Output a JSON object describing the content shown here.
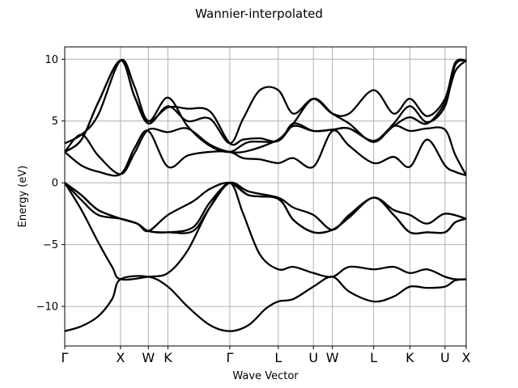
{
  "chart_data": {
    "type": "line",
    "title": "Wannier-interpolated",
    "xlabel": "Wave Vector",
    "ylabel": "Energy (eV)",
    "xlim": [
      0,
      7.2
    ],
    "ylim": [
      -13.2,
      11.0
    ],
    "grid": true,
    "kpoints": [
      {
        "label": "Γ",
        "x": 0.0
      },
      {
        "label": "X",
        "x": 1.0
      },
      {
        "label": "W",
        "x": 1.5
      },
      {
        "label": "K",
        "x": 1.85
      },
      {
        "label": "Γ",
        "x": 2.96
      },
      {
        "label": "L",
        "x": 3.83
      },
      {
        "label": "U",
        "x": 4.46
      },
      {
        "label": "W",
        "x": 4.8
      },
      {
        "label": "L",
        "x": 5.54
      },
      {
        "label": "K",
        "x": 6.19
      },
      {
        "label": "U",
        "x": 6.82
      },
      {
        "label": "X",
        "x": 7.2
      }
    ],
    "yticks": [
      {
        "label": "10",
        "value": 10
      },
      {
        "label": "5",
        "value": 5
      },
      {
        "label": "0",
        "value": 0
      },
      {
        "label": "−5",
        "value": -5
      },
      {
        "label": "−10",
        "value": -10
      }
    ],
    "series": [
      {
        "values": [
          [
            0,
            -12.0
          ],
          [
            0.3,
            -11.6
          ],
          [
            0.6,
            -10.8
          ],
          [
            0.85,
            -9.4
          ],
          [
            1.0,
            -7.8
          ],
          [
            1.5,
            -7.6
          ],
          [
            1.85,
            -8.4
          ],
          [
            2.2,
            -10.0
          ],
          [
            2.6,
            -11.5
          ],
          [
            2.96,
            -12.0
          ],
          [
            3.3,
            -11.5
          ],
          [
            3.6,
            -10.2
          ],
          [
            3.83,
            -9.6
          ],
          [
            4.1,
            -9.4
          ],
          [
            4.46,
            -8.4
          ],
          [
            4.8,
            -7.6
          ],
          [
            5.1,
            -8.8
          ],
          [
            5.54,
            -9.6
          ],
          [
            5.9,
            -9.2
          ],
          [
            6.19,
            -8.4
          ],
          [
            6.5,
            -8.5
          ],
          [
            6.82,
            -8.4
          ],
          [
            7.0,
            -7.9
          ],
          [
            7.2,
            -7.8
          ]
        ]
      },
      {
        "values": [
          [
            0,
            0
          ],
          [
            0.3,
            -2.2
          ],
          [
            0.6,
            -4.8
          ],
          [
            0.85,
            -6.8
          ],
          [
            1.0,
            -7.8
          ],
          [
            1.5,
            -7.6
          ],
          [
            1.85,
            -7.3
          ],
          [
            2.2,
            -5.5
          ],
          [
            2.6,
            -2.0
          ],
          [
            2.96,
            0
          ],
          [
            3.2,
            -2.5
          ],
          [
            3.5,
            -5.8
          ],
          [
            3.83,
            -7.0
          ],
          [
            4.1,
            -6.8
          ],
          [
            4.46,
            -7.3
          ],
          [
            4.8,
            -7.6
          ],
          [
            5.1,
            -6.8
          ],
          [
            5.54,
            -7.0
          ],
          [
            5.9,
            -6.8
          ],
          [
            6.19,
            -7.3
          ],
          [
            6.5,
            -7.0
          ],
          [
            6.82,
            -7.6
          ],
          [
            7.0,
            -7.8
          ],
          [
            7.2,
            -7.8
          ]
        ]
      },
      {
        "values": [
          [
            0,
            0
          ],
          [
            0.3,
            -1.4
          ],
          [
            0.6,
            -2.6
          ],
          [
            1.0,
            -2.9
          ],
          [
            1.3,
            -3.3
          ],
          [
            1.5,
            -3.9
          ],
          [
            1.85,
            -4.0
          ],
          [
            2.3,
            -3.6
          ],
          [
            2.6,
            -1.6
          ],
          [
            2.96,
            0
          ],
          [
            3.3,
            -0.7
          ],
          [
            3.83,
            -1.2
          ],
          [
            4.1,
            -2.0
          ],
          [
            4.46,
            -2.6
          ],
          [
            4.8,
            -3.8
          ],
          [
            5.1,
            -2.6
          ],
          [
            5.54,
            -1.2
          ],
          [
            5.9,
            -2.2
          ],
          [
            6.19,
            -2.6
          ],
          [
            6.5,
            -3.3
          ],
          [
            6.82,
            -2.5
          ],
          [
            7.2,
            -2.9
          ]
        ]
      },
      {
        "values": [
          [
            0,
            0
          ],
          [
            0.3,
            -1.0
          ],
          [
            0.6,
            -2.2
          ],
          [
            1.0,
            -2.9
          ],
          [
            1.3,
            -3.3
          ],
          [
            1.5,
            -3.9
          ],
          [
            1.85,
            -2.6
          ],
          [
            2.3,
            -1.5
          ],
          [
            2.6,
            -0.5
          ],
          [
            2.96,
            0
          ],
          [
            3.3,
            -1.0
          ],
          [
            3.83,
            -1.3
          ],
          [
            4.1,
            -3.0
          ],
          [
            4.46,
            -4.0
          ],
          [
            4.8,
            -3.8
          ],
          [
            5.1,
            -2.8
          ],
          [
            5.54,
            -1.2
          ],
          [
            5.9,
            -2.6
          ],
          [
            6.19,
            -4.0
          ],
          [
            6.5,
            -4.0
          ],
          [
            6.82,
            -4.0
          ],
          [
            7.0,
            -3.2
          ],
          [
            7.2,
            -2.9
          ]
        ]
      },
      {
        "values": [
          [
            0,
            0
          ],
          [
            0.3,
            -1.0
          ],
          [
            0.6,
            -2.2
          ],
          [
            1.0,
            -2.9
          ],
          [
            1.3,
            -3.3
          ],
          [
            1.5,
            -3.9
          ],
          [
            1.85,
            -4.0
          ],
          [
            2.3,
            -3.9
          ],
          [
            2.6,
            -2.0
          ],
          [
            2.96,
            0
          ],
          [
            3.3,
            -1.0
          ],
          [
            3.83,
            -1.3
          ],
          [
            4.1,
            -3.0
          ],
          [
            4.46,
            -4.0
          ],
          [
            4.8,
            -3.8
          ],
          [
            5.1,
            -2.8
          ],
          [
            5.54,
            -1.2
          ],
          [
            5.9,
            -2.6
          ],
          [
            6.19,
            -4.0
          ],
          [
            6.5,
            -4.0
          ],
          [
            6.82,
            -4.0
          ],
          [
            7.0,
            -3.2
          ],
          [
            7.2,
            -2.9
          ]
        ]
      },
      {
        "values": [
          [
            0,
            2.5
          ],
          [
            0.3,
            1.4
          ],
          [
            0.6,
            0.9
          ],
          [
            1.0,
            0.7
          ],
          [
            1.25,
            2.8
          ],
          [
            1.5,
            4.2
          ],
          [
            1.85,
            1.3
          ],
          [
            2.2,
            2.2
          ],
          [
            2.6,
            2.5
          ],
          [
            2.96,
            2.5
          ],
          [
            3.2,
            2.0
          ],
          [
            3.5,
            1.9
          ],
          [
            3.83,
            1.6
          ],
          [
            4.1,
            2.0
          ],
          [
            4.46,
            1.3
          ],
          [
            4.8,
            4.2
          ],
          [
            5.1,
            3.0
          ],
          [
            5.54,
            1.6
          ],
          [
            5.9,
            2.1
          ],
          [
            6.19,
            1.3
          ],
          [
            6.5,
            3.5
          ],
          [
            6.82,
            1.4
          ],
          [
            7.0,
            0.9
          ],
          [
            7.2,
            0.6
          ]
        ]
      },
      {
        "values": [
          [
            0,
            2.5
          ],
          [
            0.3,
            3.9
          ],
          [
            0.6,
            2.2
          ],
          [
            1.0,
            0.7
          ],
          [
            1.25,
            2.4
          ],
          [
            1.5,
            4.3
          ],
          [
            1.85,
            4.1
          ],
          [
            2.2,
            4.4
          ],
          [
            2.6,
            3.1
          ],
          [
            2.96,
            2.5
          ],
          [
            3.3,
            2.6
          ],
          [
            3.83,
            3.5
          ],
          [
            4.1,
            4.6
          ],
          [
            4.46,
            4.2
          ],
          [
            4.8,
            4.3
          ],
          [
            5.1,
            4.4
          ],
          [
            5.54,
            3.4
          ],
          [
            5.9,
            4.6
          ],
          [
            6.19,
            4.2
          ],
          [
            6.5,
            4.4
          ],
          [
            6.82,
            4.3
          ],
          [
            7.0,
            2.3
          ],
          [
            7.2,
            0.6
          ]
        ]
      },
      {
        "values": [
          [
            0,
            3.2
          ],
          [
            0.3,
            3.9
          ],
          [
            0.6,
            5.5
          ],
          [
            1.0,
            9.9
          ],
          [
            1.25,
            7.8
          ],
          [
            1.5,
            5.0
          ],
          [
            1.85,
            6.9
          ],
          [
            2.2,
            4.6
          ],
          [
            2.6,
            3.0
          ],
          [
            2.96,
            2.5
          ],
          [
            3.3,
            3.3
          ],
          [
            3.83,
            3.4
          ],
          [
            4.1,
            4.8
          ],
          [
            4.46,
            4.2
          ],
          [
            4.8,
            4.3
          ],
          [
            5.1,
            4.4
          ],
          [
            5.54,
            3.4
          ],
          [
            5.9,
            4.6
          ],
          [
            6.19,
            5.3
          ],
          [
            6.5,
            4.8
          ],
          [
            6.82,
            6.5
          ],
          [
            7.0,
            9.0
          ],
          [
            7.2,
            9.9
          ]
        ]
      },
      {
        "values": [
          [
            0,
            2.5
          ],
          [
            0.3,
            3.5
          ],
          [
            0.6,
            6.5
          ],
          [
            1.0,
            9.9
          ],
          [
            1.25,
            7.0
          ],
          [
            1.5,
            4.8
          ],
          [
            1.85,
            6.2
          ],
          [
            2.2,
            5.0
          ],
          [
            2.6,
            5.2
          ],
          [
            2.96,
            3.2
          ],
          [
            3.2,
            5.2
          ],
          [
            3.5,
            7.5
          ],
          [
            3.83,
            7.5
          ],
          [
            4.1,
            5.6
          ],
          [
            4.46,
            6.8
          ],
          [
            4.8,
            5.6
          ],
          [
            5.1,
            5.6
          ],
          [
            5.54,
            7.5
          ],
          [
            5.9,
            5.6
          ],
          [
            6.19,
            6.8
          ],
          [
            6.5,
            5.4
          ],
          [
            6.82,
            6.8
          ],
          [
            7.0,
            9.7
          ],
          [
            7.2,
            9.9
          ]
        ]
      },
      {
        "values": [
          [
            0,
            2.5
          ],
          [
            0.3,
            3.5
          ],
          [
            0.6,
            6.5
          ],
          [
            1.0,
            9.9
          ],
          [
            1.25,
            7.0
          ],
          [
            1.5,
            5.0
          ],
          [
            1.85,
            6.1
          ],
          [
            2.2,
            6.0
          ],
          [
            2.6,
            5.8
          ],
          [
            2.96,
            3.2
          ],
          [
            3.2,
            3.5
          ],
          [
            3.5,
            3.6
          ],
          [
            3.83,
            3.4
          ],
          [
            4.1,
            4.8
          ],
          [
            4.46,
            6.8
          ],
          [
            4.8,
            5.6
          ],
          [
            5.1,
            4.8
          ],
          [
            5.54,
            3.3
          ],
          [
            5.9,
            4.8
          ],
          [
            6.19,
            6.2
          ],
          [
            6.5,
            4.9
          ],
          [
            6.82,
            6.2
          ],
          [
            7.0,
            9.5
          ],
          [
            7.2,
            9.9
          ]
        ]
      }
    ]
  }
}
